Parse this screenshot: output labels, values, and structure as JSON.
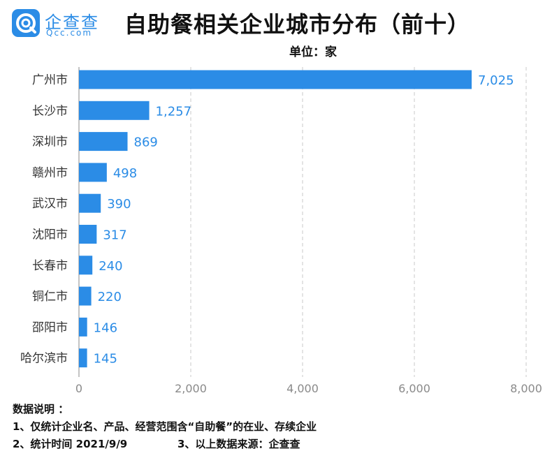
{
  "header": {
    "logo_cn": "企查查",
    "logo_en": "Qcc.com",
    "title": "自助餐相关企业城市分布（前十）",
    "unit": "单位：家"
  },
  "colors": {
    "bar": "#2b8ce6",
    "brand": "#2b8ce6",
    "grid": "#c8c8c8"
  },
  "chart_data": {
    "type": "bar",
    "orientation": "horizontal",
    "categories": [
      "广州市",
      "长沙市",
      "深圳市",
      "赣州市",
      "武汉市",
      "沈阳市",
      "长春市",
      "铜仁市",
      "邵阳市",
      "哈尔滨市"
    ],
    "values": [
      7025,
      1257,
      869,
      498,
      390,
      317,
      240,
      220,
      146,
      145
    ],
    "value_labels": [
      "7,025",
      "1,257",
      "869",
      "498",
      "390",
      "317",
      "240",
      "220",
      "146",
      "145"
    ],
    "x_ticks": [
      0,
      2000,
      4000,
      6000,
      8000
    ],
    "x_tick_labels": [
      "0",
      "2,000",
      "4,000",
      "6,000",
      "8,000"
    ],
    "xlim": [
      0,
      8000
    ],
    "grid": "vertical dashed"
  },
  "notes": {
    "heading": "数据说明 ：",
    "line1": "1、仅统计企业名、产品、经营范围含“自助餐”的在业、存续企业",
    "line2a": "2、统计时间 2021/9/9",
    "line2b": "3、以上数据来源：企查查"
  }
}
